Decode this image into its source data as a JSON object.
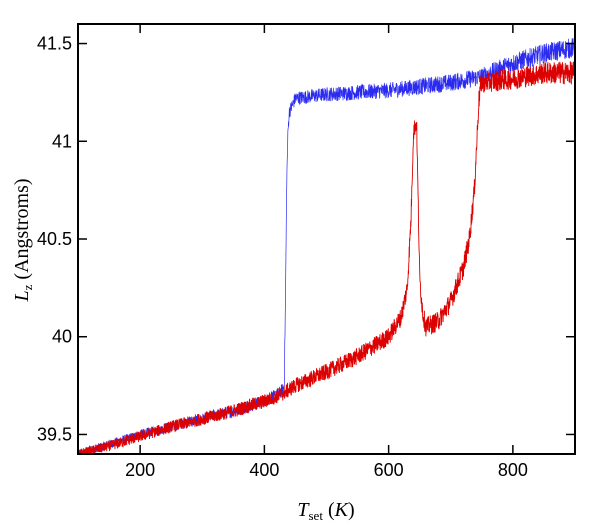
{
  "chart_data": {
    "type": "line",
    "title": "",
    "xlabel": {
      "base": "T",
      "sub": "set",
      "pre_unit": " (",
      "unit": "K",
      "post_unit": ")"
    },
    "ylabel": {
      "base": "L",
      "sub": "z",
      "text": " (Angstroms)"
    },
    "xlim": [
      100,
      900
    ],
    "ylim": [
      39.4,
      41.6
    ],
    "xticks": [
      200,
      400,
      600,
      800
    ],
    "xtick_labels": [
      "200",
      "400",
      "600",
      "800"
    ],
    "yticks": [
      39.5,
      40,
      40.5,
      41,
      41.5
    ],
    "ytick_labels": [
      "39.5",
      "40",
      "40.5",
      "41",
      "41.5"
    ],
    "grid": false,
    "legend": "none",
    "series": [
      {
        "color": "#2a2af0",
        "noise": 0.035,
        "x": [
          100,
          150,
          200,
          250,
          300,
          350,
          400,
          420,
          430,
          432,
          434,
          436,
          438,
          440,
          450,
          500,
          550,
          600,
          650,
          700,
          750,
          800,
          850,
          900
        ],
        "y": [
          39.4,
          39.45,
          39.5,
          39.54,
          39.58,
          39.62,
          39.67,
          39.7,
          39.73,
          39.76,
          40.2,
          40.8,
          41.05,
          41.15,
          41.22,
          41.24,
          41.25,
          41.26,
          41.28,
          41.3,
          41.33,
          41.4,
          41.45,
          41.48
        ]
      },
      {
        "color": "#dd0000",
        "noise": 0.04,
        "x": [
          100,
          150,
          200,
          250,
          300,
          350,
          400,
          430,
          450,
          500,
          550,
          600,
          620,
          630,
          636,
          640,
          645,
          650,
          655,
          660,
          680,
          700,
          720,
          730,
          738,
          742,
          745,
          748,
          750,
          800,
          850,
          900
        ],
        "y": [
          39.4,
          39.44,
          39.49,
          39.54,
          39.58,
          39.62,
          39.67,
          39.71,
          39.75,
          39.82,
          39.9,
          40.0,
          40.1,
          40.25,
          40.6,
          41.05,
          41.1,
          40.3,
          40.12,
          40.05,
          40.08,
          40.18,
          40.35,
          40.5,
          40.75,
          41.0,
          41.2,
          41.28,
          41.3,
          41.32,
          41.35,
          41.35
        ]
      }
    ]
  }
}
